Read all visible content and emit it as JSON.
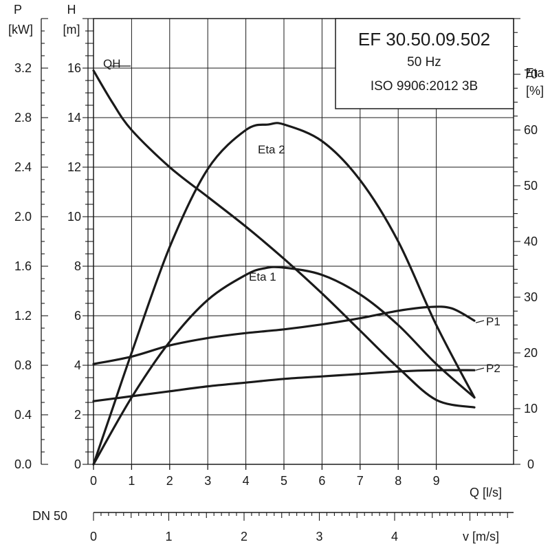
{
  "chart_data": {
    "type": "line",
    "title_box": {
      "model": "EF 30.50.09.502",
      "frequency": "50 Hz",
      "standard": "ISO 9906:2012 3B"
    },
    "axes": {
      "x": {
        "label": "Q [l/s]",
        "ticks": [
          "0",
          "1",
          "2",
          "3",
          "4",
          "5",
          "6",
          "7",
          "8",
          "9"
        ],
        "range": [
          0,
          10
        ]
      },
      "h": {
        "label": "H",
        "unit": "[m]",
        "ticks": [
          "0",
          "2",
          "4",
          "6",
          "8",
          "10",
          "12",
          "14",
          "16"
        ],
        "range": [
          0,
          18
        ]
      },
      "p": {
        "label": "P",
        "unit": "[kW]",
        "ticks": [
          "0.0",
          "0.4",
          "0.8",
          "1.2",
          "1.6",
          "2.0",
          "2.4",
          "2.8",
          "3.2"
        ],
        "range": [
          0,
          3.6
        ]
      },
      "eta": {
        "label": "Eta",
        "unit": "[%]",
        "ticks": [
          "0",
          "10",
          "20",
          "30",
          "40",
          "50",
          "60",
          "70"
        ],
        "range": [
          0,
          80
        ]
      },
      "velocity": {
        "pipe_label": "DN 50",
        "label": "v [m/s]",
        "ticks": [
          "0",
          "1",
          "2",
          "3",
          "4"
        ],
        "range": [
          0,
          5
        ]
      }
    },
    "grid": true,
    "series": [
      {
        "name": "QH",
        "axis": "h",
        "color": "#1a1a1a",
        "x": [
          0,
          0.5,
          1,
          2,
          3,
          4,
          5,
          6,
          7,
          8,
          9,
          10
        ],
        "y": [
          15.9,
          14.6,
          13.5,
          12.0,
          10.8,
          9.6,
          8.3,
          6.9,
          5.4,
          3.9,
          2.6,
          2.3
        ]
      },
      {
        "name": "Eta 2",
        "axis": "eta",
        "color": "#1a1a1a",
        "x": [
          0,
          0.5,
          1,
          2,
          3,
          4,
          4.6,
          5,
          6,
          7,
          8,
          9,
          10
        ],
        "y": [
          0,
          10,
          20,
          39,
          53,
          60,
          61,
          61,
          58,
          51,
          40,
          25,
          12
        ]
      },
      {
        "name": "Eta 1",
        "axis": "eta",
        "color": "#1a1a1a",
        "x": [
          0,
          1,
          2,
          3,
          4,
          4.5,
          5,
          6,
          7,
          8,
          9,
          10
        ],
        "y": [
          0,
          12,
          22,
          29.5,
          34,
          35.2,
          35.3,
          34,
          30.5,
          25,
          18,
          12
        ]
      },
      {
        "name": "P1",
        "axis": "p",
        "color": "#1a1a1a",
        "x": [
          0,
          1,
          2,
          3,
          4,
          5,
          6,
          7,
          8,
          8.8,
          9.4,
          10
        ],
        "y": [
          0.81,
          0.87,
          0.96,
          1.02,
          1.06,
          1.09,
          1.13,
          1.18,
          1.24,
          1.27,
          1.26,
          1.16
        ]
      },
      {
        "name": "P2",
        "axis": "p",
        "color": "#1a1a1a",
        "x": [
          0,
          1,
          2,
          3,
          4,
          5,
          6,
          7,
          8,
          9,
          10
        ],
        "y": [
          0.51,
          0.55,
          0.59,
          0.63,
          0.66,
          0.69,
          0.71,
          0.73,
          0.75,
          0.76,
          0.76
        ]
      }
    ],
    "series_labels": [
      "QH",
      "Eta 2",
      "Eta 1",
      "P1",
      "P2"
    ]
  }
}
